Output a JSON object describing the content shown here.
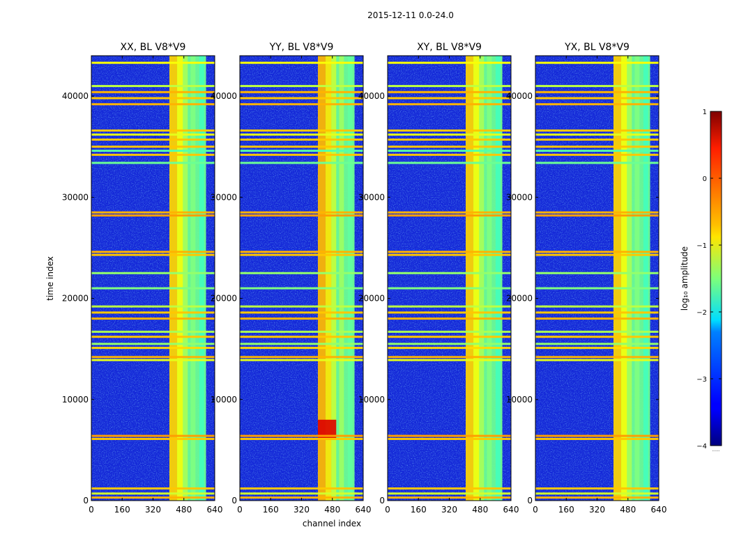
{
  "chart_data": {
    "type": "heatmap",
    "suptitle": "2015-12-11 0.0-24.0",
    "xlabel": "channel index",
    "ylabel": "time index",
    "xlim": [
      0,
      640
    ],
    "ylim": [
      0,
      44000
    ],
    "xticks": [
      0,
      160,
      320,
      480,
      640
    ],
    "yticks": [
      0,
      10000,
      20000,
      30000,
      40000
    ],
    "panels": [
      {
        "id": "xx",
        "title": "XX, BL V8*V9"
      },
      {
        "id": "yy",
        "title": "YY, BL V8*V9"
      },
      {
        "id": "xy",
        "title": "XY, BL V8*V9"
      },
      {
        "id": "yx",
        "title": "YX, BL V8*V9"
      }
    ],
    "colorbar": {
      "label": "log₁₀ amplitude",
      "colormap": "jet",
      "range": [
        -4,
        1
      ],
      "ticks": [
        1,
        0,
        -1,
        -2,
        -3,
        -4
      ],
      "tick_labels": [
        "1",
        "0",
        "−1",
        "−2",
        "−3",
        "−4"
      ],
      "extend_label": "......"
    },
    "features": {
      "bright_channel_band": [
        405,
        595
      ],
      "bright_channel_columns": [
        [
          405,
          445
        ],
        [
          445,
          475
        ],
        [
          475,
          500
        ],
        [
          515,
          540
        ],
        [
          560,
          585
        ]
      ],
      "flagged_time_rows": [
        300,
        700,
        1200,
        6100,
        6400,
        13900,
        14200,
        15100,
        15500,
        16200,
        16700,
        18000,
        18600,
        19200,
        21000,
        22500,
        24300,
        24600,
        28200,
        28500,
        33400,
        34200,
        34600,
        35000,
        35700,
        36200,
        36600,
        39200,
        39800,
        40400,
        41000,
        43300
      ],
      "noise_blob_time_range": [
        6000,
        8000
      ]
    }
  },
  "colors": {
    "background": "#ffffff",
    "axes": "#000000",
    "base": "#1428d8"
  }
}
